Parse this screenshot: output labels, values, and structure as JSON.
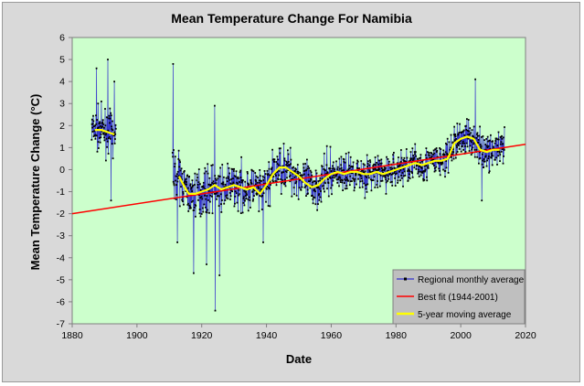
{
  "chart_data": {
    "type": "line",
    "title": "Mean Temperature Change For Namibia",
    "xlabel": "Date",
    "ylabel": "Mean  Temperature  Change  (°C)",
    "xlim": [
      1880,
      2020
    ],
    "ylim": [
      -7,
      6
    ],
    "x_ticks": [
      1880,
      1900,
      1920,
      1940,
      1960,
      1980,
      2000,
      2020
    ],
    "y_ticks": [
      -7,
      -6,
      -5,
      -4,
      -3,
      -2,
      -1,
      0,
      1,
      2,
      3,
      4,
      5,
      6
    ],
    "grid": false,
    "legend_position": "bottom-right",
    "colors": {
      "plot_background": "#ccffcc",
      "outer_background": "#d9d9d9",
      "monthly_line": "#3333cc",
      "monthly_marker": "#000000",
      "best_fit": "#ff0000",
      "moving_average": "#ffff00",
      "legend_background": "#bfbfbf"
    },
    "series": [
      {
        "name": "Regional monthly average",
        "style": "line-with-markers",
        "segments": [
          {
            "start": 1886.0,
            "end": 1893.5
          },
          {
            "start": 1911.0,
            "end": 2013.5
          }
        ],
        "spikes": [
          {
            "x": 1887.5,
            "y": 4.6
          },
          {
            "x": 1891.0,
            "y": 5.0
          },
          {
            "x": 1893.0,
            "y": 4.0
          },
          {
            "x": 1892.0,
            "y": -1.4
          },
          {
            "x": 1911.2,
            "y": 4.8
          },
          {
            "x": 1912.5,
            "y": -3.3
          },
          {
            "x": 1917.5,
            "y": -4.7
          },
          {
            "x": 1921.5,
            "y": -4.3
          },
          {
            "x": 1924.2,
            "y": -6.4
          },
          {
            "x": 1925.5,
            "y": -4.8
          },
          {
            "x": 1924.0,
            "y": 2.9
          },
          {
            "x": 1939.0,
            "y": -3.3
          },
          {
            "x": 2004.5,
            "y": 4.1
          },
          {
            "x": 2006.5,
            "y": -1.4
          }
        ]
      },
      {
        "name": "Best fit (1944-2001)",
        "style": "line",
        "x": [
          1880,
          2020
        ],
        "y": [
          -2.0,
          1.15
        ]
      },
      {
        "name": "5-year moving average",
        "style": "line",
        "x": [
          1887,
          1889,
          1891,
          1893,
          null,
          1913,
          1914,
          1916,
          1918,
          1920,
          1922,
          1924,
          1926,
          1928,
          1930,
          1932,
          1934,
          1936,
          1938,
          1940,
          1942,
          1944,
          1946,
          1948,
          1950,
          1952,
          1954,
          1956,
          1958,
          1960,
          1962,
          1964,
          1966,
          1968,
          1970,
          1972,
          1974,
          1976,
          1978,
          1980,
          1982,
          1984,
          1986,
          1988,
          1990,
          1992,
          1994,
          1996,
          1998,
          2000,
          2002,
          2004,
          2006,
          2008,
          2010,
          2012
        ],
        "y": [
          1.8,
          1.8,
          1.7,
          1.6,
          null,
          -0.3,
          -0.6,
          -1.1,
          -1.1,
          -1.0,
          -0.9,
          -0.7,
          -0.9,
          -0.8,
          -0.7,
          -0.8,
          -0.9,
          -0.8,
          -1.1,
          -0.7,
          -0.2,
          0.1,
          0.1,
          -0.1,
          -0.3,
          -0.6,
          -0.8,
          -0.7,
          -0.4,
          -0.2,
          -0.1,
          -0.2,
          -0.1,
          -0.1,
          -0.2,
          -0.2,
          -0.1,
          -0.2,
          -0.1,
          0.0,
          0.1,
          0.2,
          0.3,
          0.2,
          0.3,
          0.4,
          0.4,
          0.5,
          1.2,
          1.4,
          1.5,
          1.4,
          0.9,
          0.8,
          0.9,
          0.9
        ]
      }
    ]
  }
}
